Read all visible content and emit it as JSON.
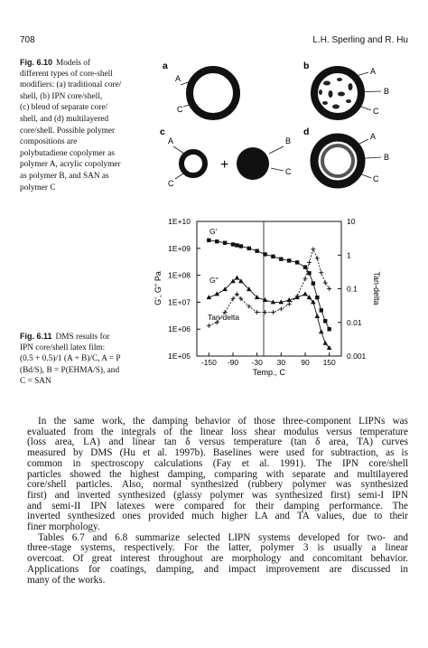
{
  "header": {
    "page_number": "708",
    "authors": "L.H. Sperling and R. Hu"
  },
  "figure_6_10": {
    "label": "Fig. 6.10",
    "caption_lines": [
      "Models of",
      "different types of core-shell",
      "modifiers: (a) traditional core/",
      "shell, (b) IPN core/shell,",
      "(c) blend of separate core/",
      "shell, and (d) multilayered",
      "core/shell. Possible polymer",
      "compositions are",
      "polybutadiene copolymer as",
      "polymer A, acrylic copolymer",
      "as polymer B, and SAN as",
      "polymer C"
    ]
  },
  "diagram": {
    "panels": [
      {
        "letter": "a",
        "labels": [
          "A",
          "C"
        ]
      },
      {
        "letter": "b",
        "labels": [
          "A",
          "B",
          "C"
        ]
      },
      {
        "letter": "c",
        "labels": [
          "A",
          "B",
          "C",
          "C"
        ]
      },
      {
        "letter": "d",
        "labels": [
          "A",
          "B",
          "C"
        ]
      }
    ],
    "plus": "+"
  },
  "chart_data": {
    "type": "line",
    "log_scale_y": true,
    "log_scale_y2": true,
    "grid": false,
    "ylabel": "G', G'' Pa",
    "y2label": "Tan-delta",
    "xlabel": "Temp., C",
    "xlim": [
      -180,
      180
    ],
    "xticks": [
      -150,
      -90,
      -30,
      30,
      90,
      150
    ],
    "ylim": [
      100000,
      10000000000
    ],
    "yticks": [
      {
        "value": 10000000000,
        "label": "1E+10"
      },
      {
        "value": 1000000000,
        "label": "1E+09"
      },
      {
        "value": 100000000,
        "label": "1E+08"
      },
      {
        "value": 10000000,
        "label": "1E+07"
      },
      {
        "value": 1000000,
        "label": "1E+06"
      },
      {
        "value": 100000,
        "label": "1E+05"
      }
    ],
    "y2lim": [
      0.001,
      10
    ],
    "y2ticks": [
      10,
      1,
      0.1,
      0.01,
      0.001
    ],
    "x": [
      -150,
      -130,
      -110,
      -90,
      -80,
      -70,
      -50,
      -30,
      -10,
      10,
      30,
      50,
      70,
      90,
      100,
      110,
      120,
      130,
      140,
      150
    ],
    "series": [
      {
        "name": "G'",
        "color": "#111111",
        "marker": "square",
        "values": [
          2000000000,
          1800000000,
          1600000000,
          1400000000,
          1300000000,
          1200000000,
          1000000000,
          800000000,
          600000000,
          500000000,
          400000000,
          350000000,
          300000000,
          200000000,
          120000000,
          50000000,
          15000000,
          5000000,
          2000000,
          1000000
        ]
      },
      {
        "name": "G''",
        "color": "#111111",
        "marker": "triangle",
        "values": [
          15000000,
          20000000,
          30000000,
          60000000,
          80000000,
          60000000,
          30000000,
          15000000,
          12000000,
          10000000,
          10000000,
          12000000,
          15000000,
          20000000,
          15000000,
          10000000,
          3000000,
          800000,
          300000,
          200000
        ]
      },
      {
        "name": "Tan-delta",
        "color": "#111111",
        "marker": "plus",
        "axis": "y2",
        "values": [
          0.008,
          0.01,
          0.02,
          0.05,
          0.07,
          0.05,
          0.03,
          0.02,
          0.02,
          0.02,
          0.025,
          0.035,
          0.06,
          0.2,
          0.6,
          1.5,
          0.8,
          0.3,
          0.15,
          0.1
        ]
      }
    ]
  },
  "figure_6_11": {
    "label": "Fig. 6.11",
    "caption_lines": [
      "DMS results for",
      "IPN core/shell latex film:",
      "(0.5 + 0.5)/1 (A + B)/C, A = P",
      "(Bd/S), B = P(EHMA/S), and",
      "C = SAN"
    ]
  },
  "body": {
    "paragraphs": [
      [
        "In the same work, the damping behavior of those three-component LIPNs was",
        "evaluated from the integrals of the linear loss shear modulus versus temperature",
        "(loss area, LA) and linear tan δ versus temperature (tan δ area, TA) curves",
        "measured by DMS (Hu et al. 1997b). Baselines were used for subtraction, as is",
        "common in spectroscopy calculations (Fay et al. 1991). The IPN core/shell",
        "particles showed the highest damping, comparing with separate and multilayered",
        "core/shell particles. Also, normal synthesized (rubbery polymer was synthesized",
        "first) and inverted synthesized (glassy polymer was synthesized first) semi-I IPN",
        "and semi-II IPN latexes were compared for their damping performance. The",
        "inverted synthesized ones provided much higher LA and TA values, due to their",
        "finer morphology."
      ],
      [
        "Tables 6.7 and 6.8 summarize selected LIPN systems developed for two- and",
        "three-stage systems, respectively. For the latter, polymer 3 is usually a linear",
        "overcoat. Of great interest throughout are morphology and concomitant behavior.",
        "Applications for coatings, damping, and impact improvement are discussed in",
        "many of the works."
      ]
    ]
  }
}
